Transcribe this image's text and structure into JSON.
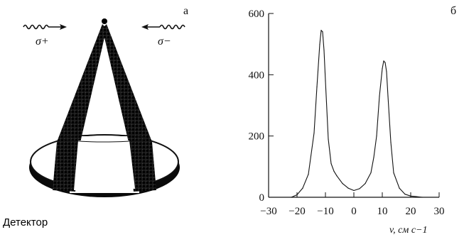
{
  "panel_a": {
    "label": "а",
    "beam_left": "σ+",
    "beam_right": "σ−",
    "detector_label": "Детектор"
  },
  "panel_b": {
    "label": "б"
  },
  "chart_data": {
    "type": "line",
    "title": "",
    "xlabel": "v, см с−1",
    "ylabel": "",
    "xlim": [
      -30,
      30
    ],
    "ylim": [
      0,
      600
    ],
    "x_ticks": [
      -30,
      -20,
      -10,
      0,
      10,
      20,
      30
    ],
    "y_ticks": [
      0,
      200,
      400,
      600
    ],
    "grid": false,
    "series": [
      {
        "x": [
          -22,
          -20,
          -18,
          -16,
          -14,
          -13,
          -12,
          -11.5,
          -11,
          -10.5,
          -10,
          -9,
          -8,
          -7,
          -6,
          -4,
          -2,
          0,
          2,
          4,
          6,
          7,
          8,
          9,
          10,
          10.5,
          11,
          11.5,
          12,
          13,
          14,
          16,
          18,
          20,
          22,
          24
        ],
        "y": [
          0,
          8,
          30,
          75,
          210,
          360,
          500,
          545,
          540,
          480,
          380,
          190,
          110,
          85,
          70,
          45,
          30,
          22,
          28,
          45,
          80,
          130,
          200,
          330,
          420,
          445,
          440,
          410,
          330,
          180,
          80,
          30,
          10,
          4,
          2,
          0
        ]
      }
    ]
  }
}
